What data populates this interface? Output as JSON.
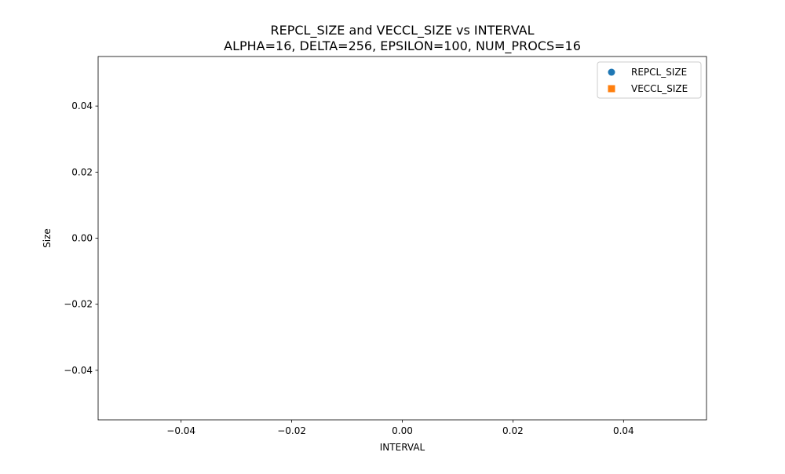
{
  "chart_data": {
    "type": "scatter",
    "title": "REPCL_SIZE and VECCL_SIZE vs INTERVAL",
    "subtitle": "ALPHA=16, DELTA=256, EPSILON=100, NUM_PROCS=16",
    "xlabel": "INTERVAL",
    "ylabel": "Size",
    "xlim": [
      -0.055,
      0.055
    ],
    "ylim": [
      -0.055,
      0.055
    ],
    "xticks": [
      -0.04,
      -0.02,
      0.0,
      0.02,
      0.04
    ],
    "xtick_labels": [
      "−0.04",
      "−0.02",
      "0.00",
      "0.02",
      "0.04"
    ],
    "yticks": [
      -0.04,
      -0.02,
      0.0,
      0.02,
      0.04
    ],
    "ytick_labels": [
      "−0.04",
      "−0.02",
      "0.00",
      "0.02",
      "0.04"
    ],
    "grid": false,
    "legend_position": "top-right",
    "series": [
      {
        "name": "REPCL_SIZE",
        "marker": "circle",
        "color": "#1f77b4",
        "x": [],
        "y": []
      },
      {
        "name": "VECCL_SIZE",
        "marker": "square",
        "color": "#ff7f0e",
        "x": [],
        "y": []
      }
    ]
  }
}
